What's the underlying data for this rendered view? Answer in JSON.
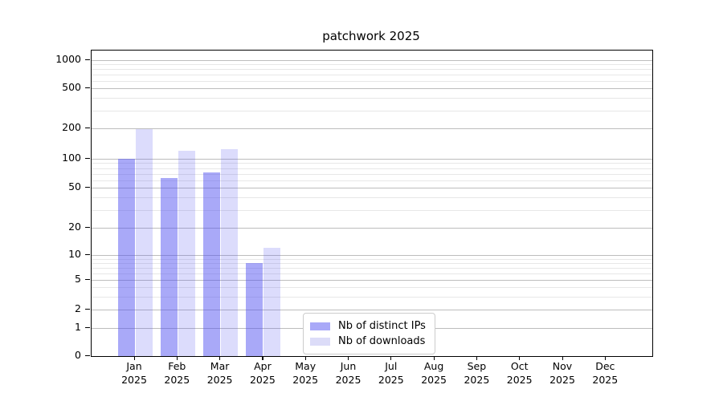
{
  "figure": {
    "title": "patchwork 2025"
  },
  "chart_data": {
    "type": "bar",
    "title": "patchwork 2025",
    "x_categories": [
      "Jan 2025",
      "Feb 2025",
      "Mar 2025",
      "Apr 2025",
      "May 2025",
      "Jun 2025",
      "Jul 2025",
      "Aug 2025",
      "Sep 2025",
      "Oct 2025",
      "Nov 2025",
      "Dec 2025"
    ],
    "series": [
      {
        "name": "Nb of distinct IPs",
        "legend_color": "#a9a9f8",
        "fill": "rgba(80,80,240,0.49)",
        "values": [
          100,
          63,
          72,
          8,
          0,
          0,
          0,
          0,
          0,
          0,
          0,
          0
        ]
      },
      {
        "name": "Nb of downloads",
        "legend_color": "#dcdcf8",
        "fill": "rgba(80,80,240,0.20)",
        "values": [
          195,
          121,
          125,
          12,
          0,
          0,
          0,
          0,
          0,
          0,
          0,
          0
        ]
      }
    ],
    "y_axis": {
      "scale": "symlog",
      "major_ticks": [
        0,
        1,
        2,
        5,
        10,
        20,
        50,
        100,
        200,
        500,
        1000
      ],
      "minor_ticks": [
        3,
        4,
        6,
        7,
        8,
        9,
        30,
        40,
        60,
        70,
        80,
        90,
        300,
        400,
        600,
        700,
        800,
        900
      ],
      "top_value": 1400
    },
    "grid": true,
    "legend": {
      "position": "inside-lower-center",
      "entries": [
        "Nb of distinct IPs",
        "Nb of downloads"
      ]
    }
  },
  "colors": {
    "grid_major": "#bdbdbd",
    "grid_minor": "#e7e7e7",
    "axis": "#000000",
    "background": "#ffffff",
    "legend_border": "#cccccc"
  }
}
